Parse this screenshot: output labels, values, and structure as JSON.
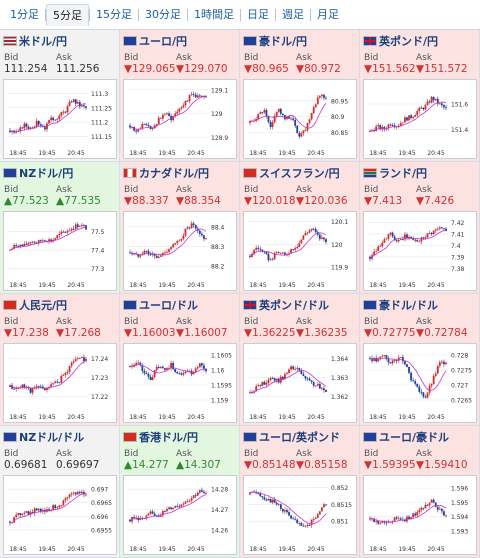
{
  "tabs": [
    {
      "label": "1分足",
      "active": false
    },
    {
      "label": "5分足",
      "active": true
    },
    {
      "label": "15分足",
      "active": false
    },
    {
      "label": "30分足",
      "active": false
    },
    {
      "label": "1時間足",
      "active": false
    },
    {
      "label": "日足",
      "active": false
    },
    {
      "label": "週足",
      "active": false
    },
    {
      "label": "月足",
      "active": false
    }
  ],
  "labels": {
    "bid": "Bid",
    "ask": "Ask"
  },
  "x_ticks": [
    "18:45",
    "19:45",
    "20:45"
  ],
  "colors": {
    "down_bg": "#fde2e2",
    "up_bg": "#e3f7e0",
    "flat_bg": "#f2f2f2",
    "down_text": "#d43131",
    "up_text": "#2f8a2f",
    "candle_up": "#d22b2b",
    "candle_down": "#1f3f9a",
    "ma": "#cc33cc"
  },
  "pairs": [
    {
      "name": "米ドル/円",
      "flag": "us",
      "dir": "flat",
      "bid": "111.254",
      "ask": "111.256",
      "arrow": "",
      "chart_data": {
        "type": "candlestick",
        "y_ticks": [
          "111.3",
          "111.25",
          "111.2",
          "111.15"
        ],
        "ylim": [
          111.13,
          111.33
        ],
        "trend": [
          111.17,
          111.16,
          111.19,
          111.18,
          111.2,
          111.18,
          111.21,
          111.22,
          111.24,
          111.28,
          111.26,
          111.25
        ]
      }
    },
    {
      "name": "ユーロ/円",
      "flag": "eu",
      "dir": "down",
      "bid": "129.065",
      "ask": "129.070",
      "arrow": "▼",
      "chart_data": {
        "type": "candlestick",
        "y_ticks": [
          "129.1",
          "129",
          "128.9"
        ],
        "ylim": [
          128.88,
          129.12
        ],
        "trend": [
          128.95,
          128.92,
          128.96,
          128.93,
          128.97,
          129.0,
          128.98,
          129.02,
          129.05,
          129.08,
          129.07,
          129.06
        ]
      }
    },
    {
      "name": "豪ドル/円",
      "flag": "au",
      "dir": "down",
      "bid": "80.965",
      "ask": "80.972",
      "arrow": "▼",
      "chart_data": {
        "type": "candlestick",
        "y_ticks": [
          "80.95",
          "80.9",
          "80.85"
        ],
        "ylim": [
          80.82,
          81.0
        ],
        "trend": [
          80.88,
          80.9,
          80.92,
          80.86,
          80.93,
          80.89,
          80.9,
          80.84,
          80.86,
          80.92,
          80.97,
          80.96
        ]
      }
    },
    {
      "name": "英ポンド/円",
      "flag": "gb",
      "dir": "down",
      "bid": "151.562",
      "ask": "151.572",
      "arrow": "▼",
      "chart_data": {
        "type": "candlestick",
        "y_ticks": [
          "151.6",
          "151.4"
        ],
        "ylim": [
          151.3,
          151.75
        ],
        "trend": [
          151.38,
          151.42,
          151.4,
          151.45,
          151.43,
          151.48,
          151.5,
          151.55,
          151.58,
          151.65,
          151.6,
          151.56
        ]
      }
    },
    {
      "name": "NZドル/円",
      "flag": "nz",
      "dir": "up",
      "bid": "77.523",
      "ask": "77.535",
      "arrow": "▲",
      "chart_data": {
        "type": "candlestick",
        "y_ticks": [
          "77.5",
          "77.4",
          "77.3"
        ],
        "ylim": [
          77.27,
          77.58
        ],
        "trend": [
          77.4,
          77.43,
          77.42,
          77.45,
          77.44,
          77.46,
          77.45,
          77.48,
          77.5,
          77.52,
          77.54,
          77.52
        ]
      }
    },
    {
      "name": "カナダドル/円",
      "flag": "ca",
      "dir": "down",
      "bid": "88.337",
      "ask": "88.354",
      "arrow": "▼",
      "chart_data": {
        "type": "candlestick",
        "y_ticks": [
          "88.4",
          "88.3",
          "88.2"
        ],
        "ylim": [
          88.16,
          88.45
        ],
        "trend": [
          88.27,
          88.25,
          88.28,
          88.26,
          88.24,
          88.27,
          88.3,
          88.32,
          88.38,
          88.41,
          88.36,
          88.34
        ]
      }
    },
    {
      "name": "スイスフラン/円",
      "flag": "ch",
      "dir": "down",
      "bid": "120.018",
      "ask": "120.036",
      "arrow": "▼",
      "chart_data": {
        "type": "candlestick",
        "y_ticks": [
          "120.1",
          "120",
          "119.9"
        ],
        "ylim": [
          119.87,
          120.12
        ],
        "trend": [
          119.95,
          119.99,
          119.96,
          119.93,
          119.97,
          119.95,
          119.98,
          120.0,
          120.05,
          120.07,
          120.03,
          120.02
        ]
      }
    },
    {
      "name": "ランド/円",
      "flag": "za",
      "dir": "down",
      "bid": "7.413",
      "ask": "7.426",
      "arrow": "▼",
      "chart_data": {
        "type": "candlestick",
        "y_ticks": [
          "7.42",
          "7.41",
          "7.4",
          "7.39",
          "7.38"
        ],
        "ylim": [
          7.375,
          7.425
        ],
        "trend": [
          7.39,
          7.398,
          7.405,
          7.41,
          7.402,
          7.408,
          7.406,
          7.404,
          7.409,
          7.412,
          7.415,
          7.413
        ]
      }
    },
    {
      "name": "人民元/円",
      "flag": "cn",
      "dir": "down",
      "bid": "17.238",
      "ask": "17.268",
      "arrow": "▼",
      "chart_data": {
        "type": "candlestick",
        "y_ticks": [
          "17.24",
          "17.23",
          "17.22"
        ],
        "ylim": [
          17.215,
          17.245
        ],
        "trend": [
          17.225,
          17.224,
          17.226,
          17.223,
          17.225,
          17.224,
          17.226,
          17.228,
          17.232,
          17.238,
          17.241,
          17.239
        ]
      }
    },
    {
      "name": "ユーロ/ドル",
      "flag": "eu-us",
      "dir": "down",
      "bid": "1.16003",
      "ask": "1.16007",
      "arrow": "▼",
      "chart_data": {
        "type": "candlestick",
        "y_ticks": [
          "1.1605",
          "1.16",
          "1.1595",
          "1.159"
        ],
        "ylim": [
          1.1588,
          1.1607
        ],
        "trend": [
          1.1601,
          1.1603,
          1.1599,
          1.1597,
          1.1601,
          1.16,
          1.1602,
          1.1598,
          1.16,
          1.1599,
          1.1602,
          1.16
        ]
      }
    },
    {
      "name": "英ポンド/ドル",
      "flag": "gb-us",
      "dir": "down",
      "bid": "1.36225",
      "ask": "1.36235",
      "arrow": "▼",
      "chart_data": {
        "type": "candlestick",
        "y_ticks": [
          "1.364",
          "1.363",
          "1.362"
        ],
        "ylim": [
          1.3615,
          1.3645
        ],
        "trend": [
          1.3622,
          1.3625,
          1.3627,
          1.363,
          1.3628,
          1.3631,
          1.3635,
          1.3634,
          1.3629,
          1.3627,
          1.3625,
          1.3622
        ]
      }
    },
    {
      "name": "豪ドル/ドル",
      "flag": "au-us",
      "dir": "down",
      "bid": "0.72775",
      "ask": "0.72784",
      "arrow": "▼",
      "chart_data": {
        "type": "candlestick",
        "y_ticks": [
          "0.728",
          "0.7275",
          "0.727",
          "0.7265"
        ],
        "ylim": [
          0.7263,
          0.7282
        ],
        "trend": [
          0.7279,
          0.7278,
          0.728,
          0.7277,
          0.7279,
          0.7278,
          0.7272,
          0.7268,
          0.7266,
          0.7271,
          0.7277,
          0.7278
        ]
      }
    },
    {
      "name": "NZドル/ドル",
      "flag": "nz-us",
      "dir": "flat",
      "bid": "0.69681",
      "ask": "0.69697",
      "arrow": "",
      "chart_data": {
        "type": "candlestick",
        "y_ticks": [
          "0.697",
          "0.6965",
          "0.696",
          "0.6955"
        ],
        "ylim": [
          0.6952,
          0.6973
        ],
        "trend": [
          0.6958,
          0.696,
          0.6962,
          0.6961,
          0.6963,
          0.6962,
          0.6963,
          0.6964,
          0.6966,
          0.6968,
          0.6969,
          0.6968
        ]
      }
    },
    {
      "name": "香港ドル/円",
      "flag": "hk",
      "dir": "up",
      "bid": "14.277",
      "ask": "14.307",
      "arrow": "▲",
      "chart_data": {
        "type": "candlestick",
        "y_ticks": [
          "14.28",
          "14.27",
          "14.26"
        ],
        "ylim": [
          14.256,
          14.284
        ],
        "trend": [
          14.265,
          14.266,
          14.265,
          14.268,
          14.267,
          14.269,
          14.271,
          14.272,
          14.274,
          14.276,
          14.279,
          14.277
        ]
      }
    },
    {
      "name": "ユーロ/英ポンド",
      "flag": "eu-gb",
      "dir": "down",
      "bid": "0.85148",
      "ask": "0.85158",
      "arrow": "▼",
      "chart_data": {
        "type": "candlestick",
        "y_ticks": [
          "0.852",
          "0.8515",
          "0.851"
        ],
        "ylim": [
          0.8505,
          0.8522
        ],
        "trend": [
          0.8518,
          0.8519,
          0.8517,
          0.8516,
          0.8515,
          0.8513,
          0.8511,
          0.8509,
          0.8508,
          0.851,
          0.8513,
          0.8515
        ]
      }
    },
    {
      "name": "ユーロ/豪ドル",
      "flag": "eu-au",
      "dir": "down",
      "bid": "1.59395",
      "ask": "1.59410",
      "arrow": "▼",
      "chart_data": {
        "type": "candlestick",
        "y_ticks": [
          "1.596",
          "1.595",
          "1.594",
          "1.593"
        ],
        "ylim": [
          1.5925,
          1.5965
        ],
        "trend": [
          1.5938,
          1.5936,
          1.5935,
          1.5937,
          1.5939,
          1.5938,
          1.594,
          1.5943,
          1.5948,
          1.5952,
          1.5945,
          1.594
        ]
      }
    }
  ]
}
